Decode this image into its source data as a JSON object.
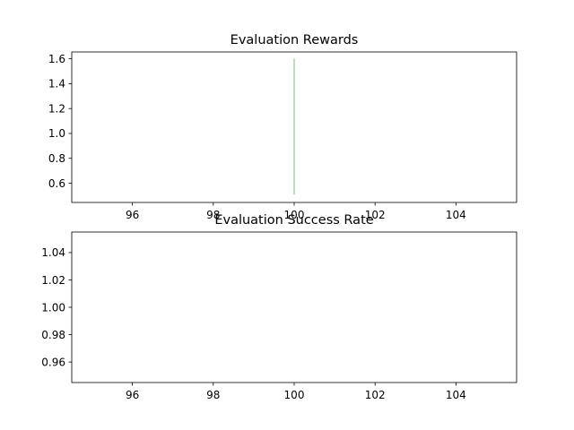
{
  "chart_data": [
    {
      "type": "line",
      "title": "Evaluation Rewards",
      "xlabel": "",
      "ylabel": "",
      "xlim": [
        94.5,
        105.5
      ],
      "ylim": [
        0.445,
        1.655
      ],
      "xticks": [
        96,
        98,
        100,
        102,
        104
      ],
      "yticks": [
        0.6,
        0.8,
        1.0,
        1.2,
        1.4,
        1.6
      ],
      "xtick_labels": [
        "96",
        "98",
        "100",
        "102",
        "104"
      ],
      "ytick_labels": [
        "0.6",
        "0.8",
        "1.0",
        "1.2",
        "1.4",
        "1.6"
      ],
      "grid": false,
      "series": [
        {
          "x": [
            100,
            100
          ],
          "y": [
            0.51,
            1.6
          ],
          "color": "#8fc78f"
        }
      ]
    },
    {
      "type": "line",
      "title": "Evaluation Success Rate",
      "xlabel": "",
      "ylabel": "",
      "xlim": [
        94.5,
        105.5
      ],
      "ylim": [
        0.945,
        1.055
      ],
      "xticks": [
        96,
        98,
        100,
        102,
        104
      ],
      "yticks": [
        0.96,
        0.98,
        1.0,
        1.02,
        1.04
      ],
      "xtick_labels": [
        "96",
        "98",
        "100",
        "102",
        "104"
      ],
      "ytick_labels": [
        "0.96",
        "0.98",
        "1.00",
        "1.02",
        "1.04"
      ],
      "grid": false,
      "series": []
    }
  ]
}
